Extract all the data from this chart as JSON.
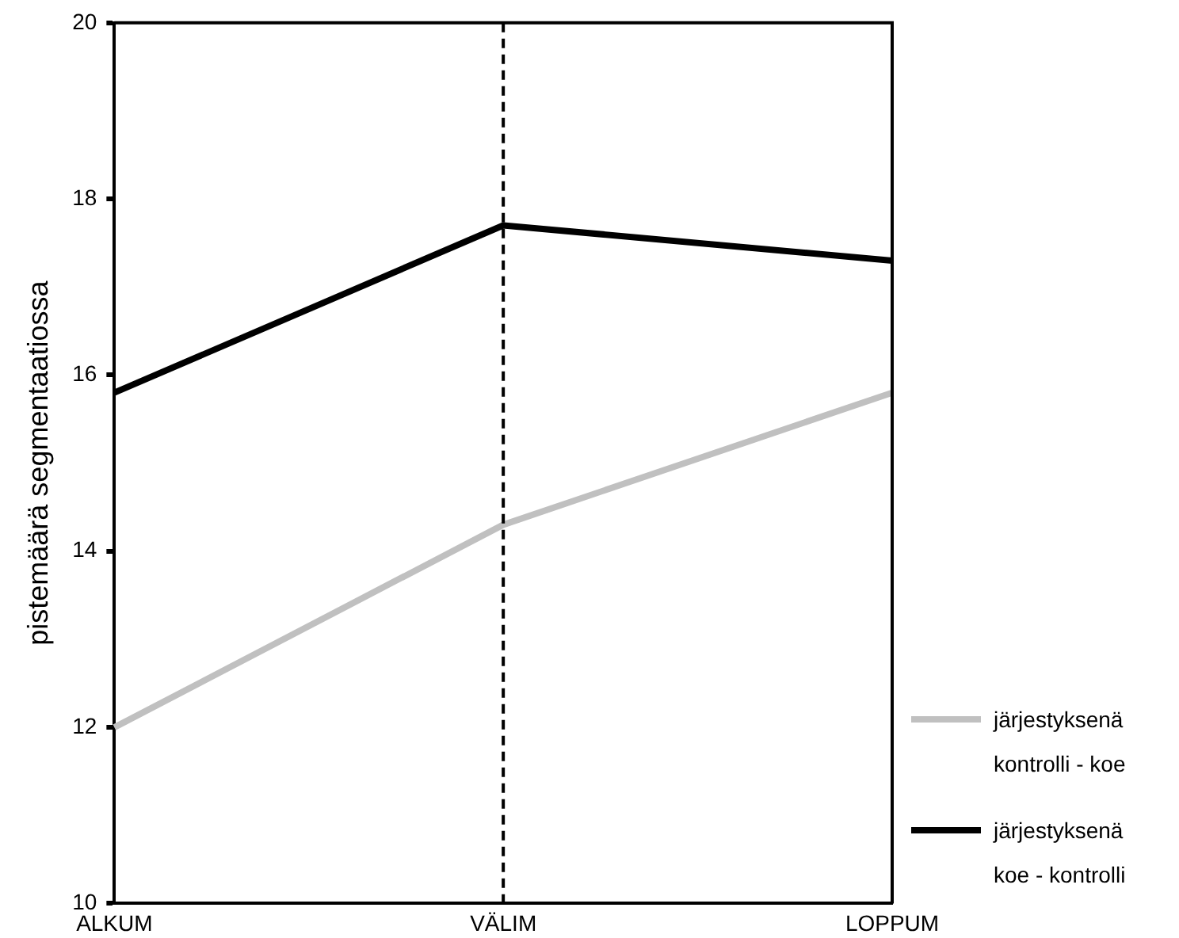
{
  "chart_data": {
    "type": "line",
    "ylabel": "pistemäärä segmentaatiossa",
    "categories": [
      "ALKUM",
      "VÄLIM",
      "LOPPUM"
    ],
    "series": [
      {
        "name": "järjestyksenä kontrolli - koe",
        "color": "#c0c0c0",
        "values": [
          12.0,
          14.3,
          15.8
        ]
      },
      {
        "name": "järjestyksenä koe - kontrolli",
        "color": "#000000",
        "values": [
          15.8,
          17.7,
          17.3
        ]
      }
    ],
    "ylim": [
      10,
      20
    ],
    "yticks": [
      10,
      12,
      14,
      16,
      18,
      20
    ],
    "grid": false,
    "legend": "bottom right",
    "marker": "none",
    "line_style": "solid",
    "ref_lines": [
      {
        "axis": "x",
        "value": "VÄLIM",
        "color": "#000000",
        "line_style": "dashed"
      }
    ]
  }
}
